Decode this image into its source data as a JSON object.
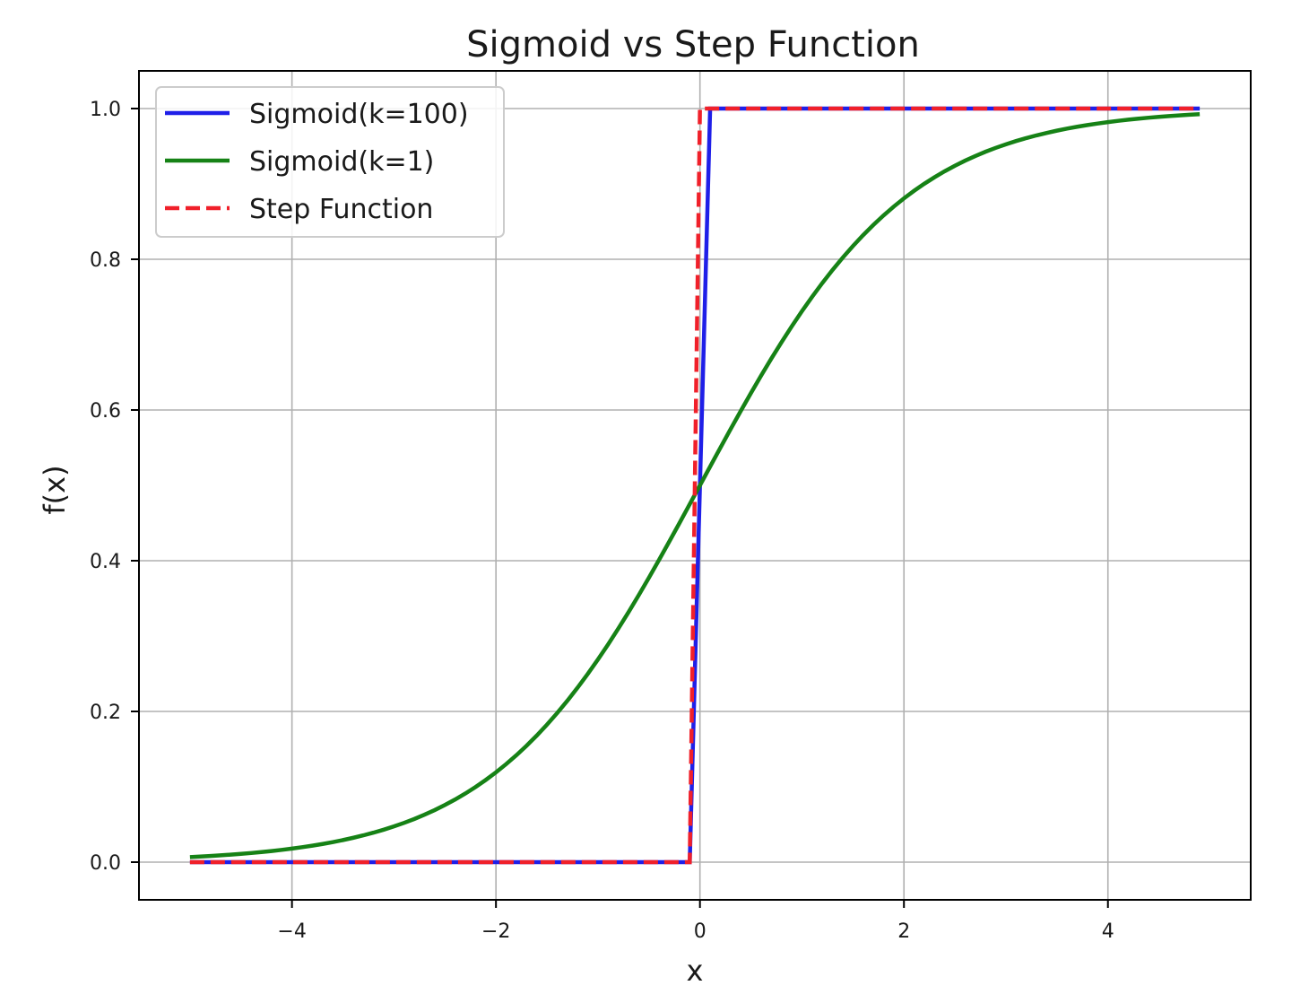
{
  "chart_data": {
    "type": "line",
    "title": "Sigmoid vs Step Function",
    "xlabel": "x",
    "ylabel": "f(x)",
    "xlim": [
      -5.5,
      5.4
    ],
    "ylim": [
      -0.05,
      1.05
    ],
    "xticks": [
      -4,
      -2,
      0,
      2,
      4
    ],
    "xtick_labels": [
      "−4",
      "−2",
      "0",
      "2",
      "4"
    ],
    "yticks": [
      0.0,
      0.2,
      0.4,
      0.6,
      0.8,
      1.0
    ],
    "ytick_labels": [
      "0.0",
      "0.2",
      "0.4",
      "0.6",
      "0.8",
      "1.0"
    ],
    "grid": true,
    "legend_position": "top-left",
    "x_domain": [
      -5.0,
      4.9
    ],
    "series": [
      {
        "name": "Sigmoid(k=100)",
        "function": "1 / (1 + exp(-100 * x))",
        "color": "#1f1fe8",
        "style": "solid",
        "sample_points": [
          {
            "x": -5.0,
            "y": 0.0
          },
          {
            "x": -0.1,
            "y": 0.0
          },
          {
            "x": 0.0,
            "y": 0.5
          },
          {
            "x": 0.1,
            "y": 1.0
          },
          {
            "x": 4.9,
            "y": 1.0
          }
        ]
      },
      {
        "name": "Sigmoid(k=1)",
        "function": "1 / (1 + exp(-x))",
        "color": "#168216",
        "style": "solid",
        "sample_points": [
          {
            "x": -5.0,
            "y": 0.007
          },
          {
            "x": -4.0,
            "y": 0.018
          },
          {
            "x": -2.0,
            "y": 0.119
          },
          {
            "x": 0.0,
            "y": 0.5
          },
          {
            "x": 2.0,
            "y": 0.881
          },
          {
            "x": 4.0,
            "y": 0.982
          },
          {
            "x": 4.9,
            "y": 0.993
          }
        ]
      },
      {
        "name": "Step Function",
        "function": "x >= 0 ? 1 : 0",
        "color": "#f0202a",
        "style": "dashed",
        "sample_points": [
          {
            "x": -5.0,
            "y": 0.0
          },
          {
            "x": 0.0,
            "y": 0.0
          },
          {
            "x": 0.0,
            "y": 1.0
          },
          {
            "x": 4.9,
            "y": 1.0
          }
        ]
      }
    ]
  }
}
